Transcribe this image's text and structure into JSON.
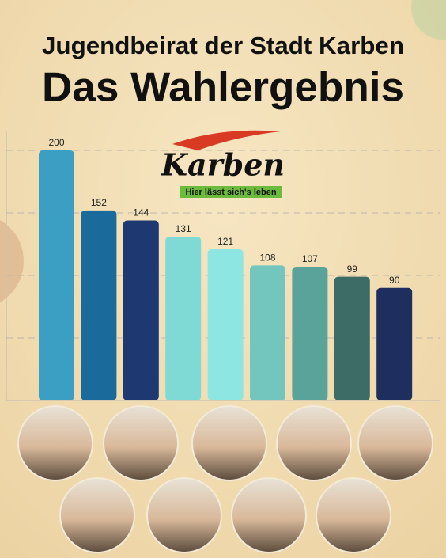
{
  "chart_data": {
    "type": "bar",
    "subtitle": "Jugendbeirat der Stadt Karben",
    "title": "Das Wahlergebnis",
    "values": [
      200,
      152,
      144,
      131,
      121,
      108,
      107,
      99,
      90
    ],
    "colors": [
      "#3a9fc2",
      "#1a6b9c",
      "#1e3872",
      "#7fd9d4",
      "#8ee6e2",
      "#72c6be",
      "#5aa39a",
      "#3d6b66",
      "#1e2e5e"
    ],
    "ylim": [
      0,
      200
    ],
    "yticks": [
      50,
      100,
      150,
      200
    ],
    "grid": true
  },
  "logo": {
    "name": "Karben",
    "slogan": "Hier lässt sich's leben"
  }
}
